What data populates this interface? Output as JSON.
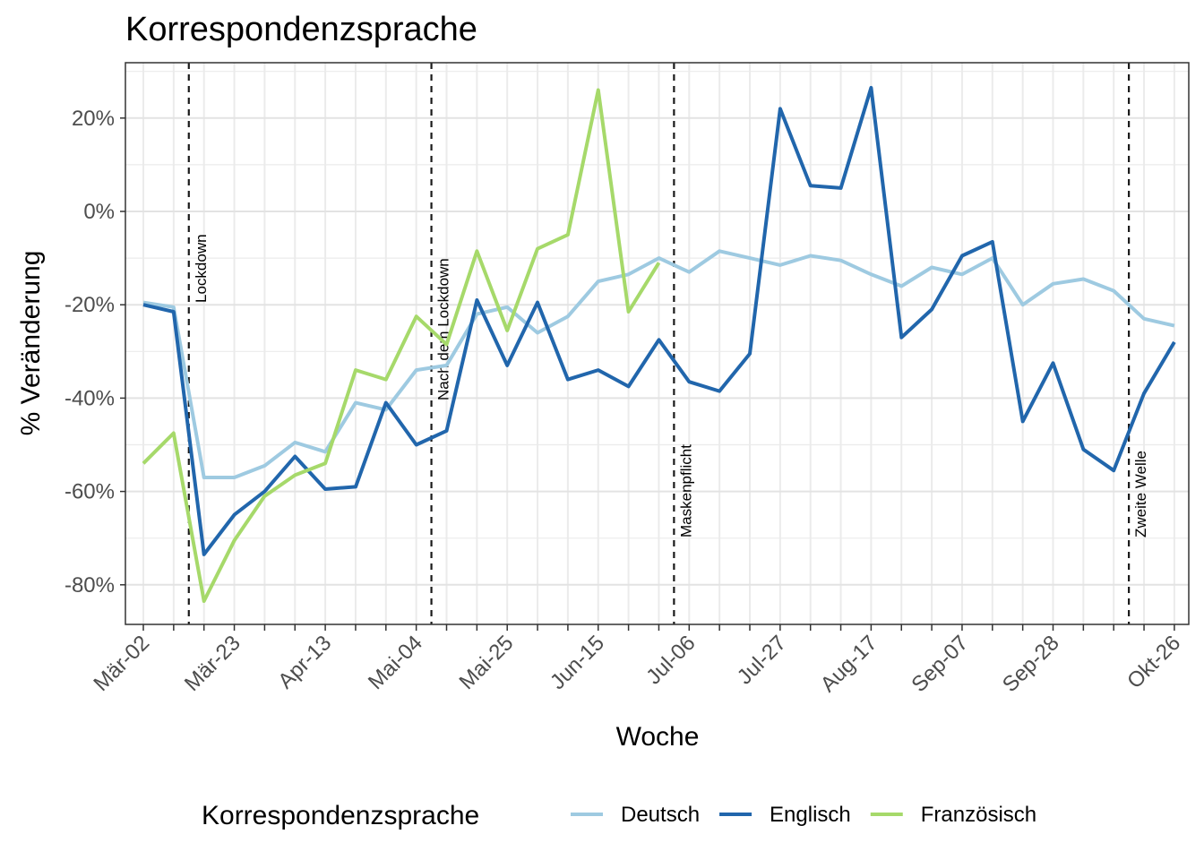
{
  "chart_data": {
    "type": "line",
    "title": "Korrespondenzsprache",
    "xlabel": "Woche",
    "ylabel": "% Veränderung",
    "x": [
      "Mär-02",
      "Mär-09",
      "Mär-16",
      "Mär-23",
      "Mär-30",
      "Apr-06",
      "Apr-13",
      "Apr-20",
      "Apr-27",
      "Mai-04",
      "Mai-11",
      "Mai-18",
      "Mai-25",
      "Jun-01",
      "Jun-08",
      "Jun-15",
      "Jun-22",
      "Jun-29",
      "Jul-06",
      "Jul-13",
      "Jul-20",
      "Jul-27",
      "Aug-03",
      "Aug-10",
      "Aug-17",
      "Aug-24",
      "Aug-31",
      "Sep-07",
      "Sep-14",
      "Sep-21",
      "Sep-28",
      "Okt-05",
      "Okt-12",
      "Okt-19",
      "Okt-26"
    ],
    "x_tick_labels": [
      "Mär-02",
      "Mär-23",
      "Apr-13",
      "Mai-04",
      "Mai-25",
      "Jun-15",
      "Jul-06",
      "Jul-27",
      "Aug-17",
      "Sep-07",
      "Sep-28",
      "Okt-26"
    ],
    "y_tick_labels": [
      "20%",
      "0%",
      "-20%",
      "-40%",
      "-60%",
      "-80%"
    ],
    "y_ticks": [
      20,
      0,
      -20,
      -40,
      -60,
      -80
    ],
    "ylim": [
      -88,
      31
    ],
    "grid": true,
    "legend_position": "bottom",
    "legend_title": "Korrespondenzsprache",
    "series": [
      {
        "name": "Deutsch",
        "color": "#9ecae1",
        "values": [
          -19.5,
          -20.5,
          -57,
          -57,
          -54.5,
          -49.5,
          -51.5,
          -41,
          -42.5,
          -34,
          -33,
          -22,
          -20.5,
          -26,
          -22.5,
          -15,
          -13.5,
          -10,
          -13,
          -8.5,
          -10,
          -11.5,
          -9.5,
          -10.5,
          -13.5,
          -16,
          -12,
          -13.5,
          -10,
          -20,
          -15.5,
          -14.5,
          -17,
          -23,
          -24.5
        ]
      },
      {
        "name": "Englisch",
        "color": "#2166ac",
        "values": [
          -20,
          -21.5,
          -73.5,
          -65,
          -60,
          -52.5,
          -59.5,
          -59,
          -41,
          -50,
          -47,
          -19,
          -33,
          -19.5,
          -36,
          -34,
          -37.5,
          -27.5,
          -36.5,
          -38.5,
          -30.5,
          22,
          5.5,
          5,
          26.5,
          -27,
          -21,
          -9.5,
          -6.5,
          -45,
          -32.5,
          -51,
          -55.5,
          -39,
          -28
        ]
      },
      {
        "name": "Französisch",
        "color": "#a6d96a",
        "values": [
          -54,
          -47.5,
          -83.5,
          -70.5,
          -61,
          -56.5,
          -54,
          -34,
          -36,
          -22.5,
          -28.5,
          -8.5,
          -25.5,
          -8,
          -5,
          26,
          -21.5,
          -11,
          null,
          null,
          null,
          null,
          null,
          null,
          null,
          null,
          null,
          null,
          null,
          null,
          null,
          null,
          null,
          null,
          null
        ]
      }
    ],
    "events": [
      {
        "label": "Lockdown",
        "x_index": 1.5
      },
      {
        "label": "Nach dem Lockdown",
        "x_index": 9.5
      },
      {
        "label": "Maskenpflicht",
        "x_index": 17.5
      },
      {
        "label": "Zweite Welle",
        "x_index": 32.5
      }
    ]
  }
}
